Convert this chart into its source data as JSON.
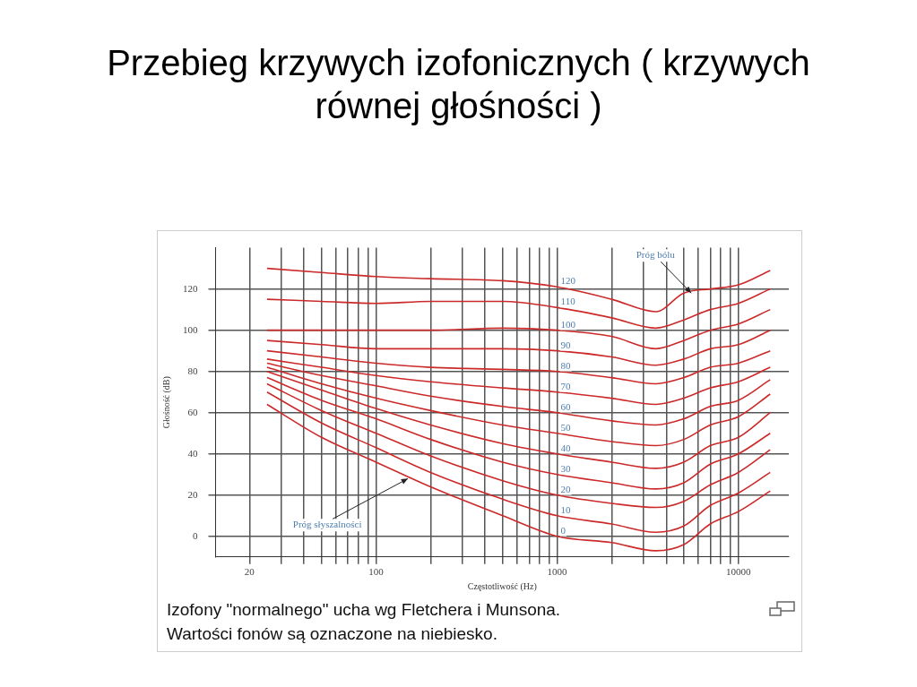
{
  "chart_data": {
    "type": "line",
    "title": "Przebieg krzywych izofonicznych ( krzywych równej głośności )",
    "xlabel": "Częstotliwość (Hz)",
    "ylabel": "Głośność (dB)",
    "x": [
      25,
      50,
      100,
      200,
      500,
      1000,
      2000,
      3500,
      5000,
      7000,
      10000,
      15000
    ],
    "series": [
      {
        "name": "0",
        "color": "#cc2a2a",
        "values": [
          64,
          48,
          36,
          24,
          10,
          0,
          -3,
          -7,
          -4,
          6,
          12,
          22
        ]
      },
      {
        "name": "10",
        "color": "#cc2a2a",
        "values": [
          70,
          55,
          43,
          31,
          18,
          10,
          6,
          2,
          5,
          15,
          21,
          31
        ]
      },
      {
        "name": "20",
        "color": "#cc2a2a",
        "values": [
          74,
          61,
          50,
          39,
          27,
          20,
          16,
          14,
          17,
          25,
          31,
          42
        ]
      },
      {
        "name": "30",
        "color": "#cc2a2a",
        "values": [
          77,
          66,
          57,
          47,
          36,
          30,
          26,
          23,
          26,
          35,
          40,
          50
        ]
      },
      {
        "name": "40",
        "color": "#cc2a2a",
        "values": [
          80,
          71,
          62,
          54,
          45,
          40,
          36,
          33,
          36,
          44,
          48,
          60
        ]
      },
      {
        "name": "50",
        "color": "#cc2a2a",
        "values": [
          82,
          74,
          67,
          61,
          54,
          50,
          46,
          44,
          47,
          54,
          58,
          69
        ]
      },
      {
        "name": "60",
        "color": "#cc2a2a",
        "values": [
          84,
          78,
          73,
          68,
          63,
          60,
          56,
          54,
          57,
          63,
          66,
          76
        ]
      },
      {
        "name": "70",
        "color": "#cc2a2a",
        "values": [
          86,
          82,
          78,
          75,
          72,
          70,
          67,
          64,
          67,
          72,
          75,
          82
        ]
      },
      {
        "name": "80",
        "color": "#cc2a2a",
        "values": [
          90,
          87,
          84,
          82,
          81,
          80,
          77,
          74,
          77,
          82,
          84,
          90
        ]
      },
      {
        "name": "90",
        "color": "#cc2a2a",
        "values": [
          95,
          93,
          91,
          91,
          91,
          90,
          87,
          83,
          86,
          91,
          93,
          100
        ]
      },
      {
        "name": "100",
        "color": "#cc2a2a",
        "values": [
          100,
          100,
          100,
          100,
          101,
          100,
          97,
          91,
          95,
          100,
          103,
          110
        ]
      },
      {
        "name": "110",
        "color": "#cc2a2a",
        "values": [
          115,
          114,
          113,
          114,
          114,
          111,
          106,
          101,
          105,
          110,
          113,
          120
        ]
      },
      {
        "name": "120",
        "color": "#cc2a2a",
        "values": [
          130,
          128,
          126,
          125,
          124,
          121,
          115,
          109,
          118,
          120,
          122,
          129
        ]
      }
    ],
    "xlim": [
      13,
      19000
    ],
    "ylim": [
      -10,
      140
    ],
    "xticks": [
      {
        "value": 20,
        "label": "20"
      },
      {
        "value": 30,
        "label": null
      },
      {
        "value": 40,
        "label": null
      },
      {
        "value": 50,
        "label": null
      },
      {
        "value": 60,
        "label": null
      },
      {
        "value": 70,
        "label": null
      },
      {
        "value": 80,
        "label": null
      },
      {
        "value": 90,
        "label": null
      },
      {
        "value": 100,
        "label": "100"
      },
      {
        "value": 200,
        "label": null
      },
      {
        "value": 300,
        "label": null
      },
      {
        "value": 400,
        "label": null
      },
      {
        "value": 500,
        "label": null
      },
      {
        "value": 600,
        "label": null
      },
      {
        "value": 700,
        "label": null
      },
      {
        "value": 800,
        "label": null
      },
      {
        "value": 900,
        "label": null
      },
      {
        "value": 1000,
        "label": "1000"
      },
      {
        "value": 2000,
        "label": null
      },
      {
        "value": 3000,
        "label": null
      },
      {
        "value": 4000,
        "label": null
      },
      {
        "value": 5000,
        "label": null
      },
      {
        "value": 6000,
        "label": null
      },
      {
        "value": 7000,
        "label": null
      },
      {
        "value": 8000,
        "label": null
      },
      {
        "value": 9000,
        "label": null
      },
      {
        "value": 10000,
        "label": "10000"
      }
    ],
    "yticks": [
      0,
      20,
      40,
      60,
      80,
      100,
      120
    ],
    "log": "x",
    "grid": true,
    "legend": false,
    "marker": "none",
    "line_style": "solid",
    "annotations": [
      {
        "text": "Próg bólu",
        "x": 5500,
        "y": 118
      },
      {
        "text": "Próg słyszalności",
        "x": 150,
        "y": 28
      },
      "Izofony \"normalnego\" ucha wg Fletchera i Munsona.",
      "Wartości fonów są oznaczone na niebiesko."
    ]
  }
}
